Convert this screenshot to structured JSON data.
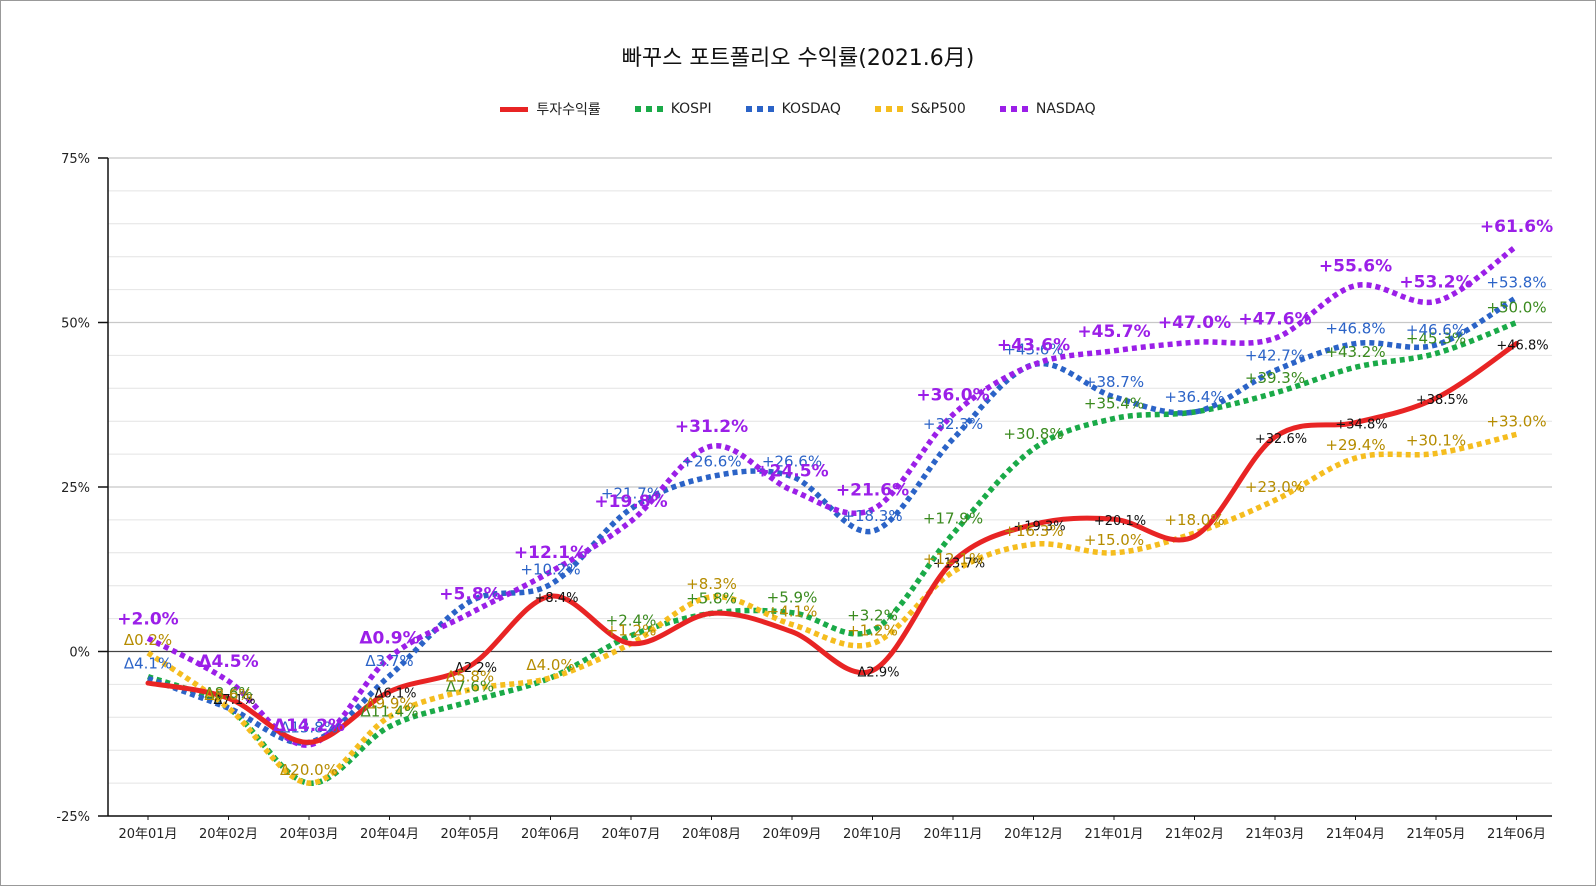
{
  "chart_data": {
    "type": "line",
    "title": "빠꾸스 포트폴리오 수익률(2021.6月)",
    "ylim": [
      -25,
      75
    ],
    "yticks": [
      "75%",
      "50%",
      "25%",
      "0%",
      "-25%"
    ],
    "ytick_values": [
      75,
      50,
      25,
      0,
      -25
    ],
    "grid": true,
    "legend_position": "top-center",
    "categories": [
      "20年01月",
      "20年02月",
      "20年03月",
      "20年04月",
      "20年05月",
      "20年06月",
      "20年07月",
      "20年08月",
      "20年09月",
      "20年10月",
      "20年11月",
      "20年12月",
      "21年01月",
      "21年02月",
      "21年03月",
      "21年04月",
      "21年05月",
      "21年06月"
    ],
    "series": [
      {
        "name": "투자수익률",
        "color": "#e82424",
        "style": "solid",
        "values": [
          -4.8,
          -7.1,
          -13.8,
          -6.1,
          -2.2,
          8.4,
          1.2,
          5.8,
          3.0,
          -2.9,
          13.7,
          19.3,
          20.1,
          17.5,
          32.6,
          34.8,
          38.5,
          46.8
        ],
        "labels": [
          "",
          "Δ7.1%",
          "",
          "Δ6.1%",
          "Δ2.2%",
          "+8.4%",
          "",
          "",
          "",
          "Δ2.9%",
          "+13.7%",
          "+19.3%",
          "+20.1%",
          "",
          "+32.6%",
          "+34.8%",
          "+38.5%",
          "+46.8%"
        ],
        "label_color": "#111111"
      },
      {
        "name": "KOSPI",
        "color": "#1aaa48",
        "style": "dotted",
        "values": [
          -3.8,
          -8.6,
          -20.0,
          -11.4,
          -7.6,
          -4.0,
          2.4,
          5.8,
          5.9,
          3.2,
          17.9,
          30.8,
          35.4,
          36.4,
          39.3,
          43.2,
          45.3,
          50.0
        ],
        "labels": [
          "",
          "Δ8.6%",
          "",
          "Δ11.4%",
          "Δ7.6%",
          "",
          "+2.4%",
          "+5.8%",
          "+5.9%",
          "+3.2%",
          "+17.9%",
          "+30.8%",
          "+35.4%",
          "",
          "+39.3%",
          "+43.2%",
          "+45.3%",
          "+50.0%"
        ],
        "label_color": "#3a8a1e"
      },
      {
        "name": "KOSDAQ",
        "color": "#2b63c7",
        "style": "dotted",
        "values": [
          -4.1,
          -8.6,
          -13.8,
          -3.7,
          7.6,
          10.2,
          21.7,
          26.6,
          26.6,
          18.3,
          32.3,
          43.6,
          38.7,
          36.4,
          42.7,
          46.8,
          46.6,
          53.8
        ],
        "labels": [
          "Δ4.1%",
          "",
          "Δ13.8%",
          "Δ3.7%",
          "",
          "+10.2%",
          "+21.7%",
          "+26.6%",
          "+26.6%",
          "+18.3%",
          "+32.3%",
          "+43.6%",
          "+38.7%",
          "+36.4%",
          "+42.7%",
          "+46.8%",
          "+46.6%",
          "+53.8%"
        ],
        "label_color": "#2b63c7"
      },
      {
        "name": "S&P500",
        "color": "#f5bd1f",
        "style": "dotted",
        "values": [
          -0.2,
          -8.6,
          -20.0,
          -9.9,
          -5.8,
          -4.0,
          1.2,
          8.3,
          4.1,
          1.2,
          12.1,
          16.3,
          15.0,
          18.0,
          23.0,
          29.4,
          30.1,
          33.0
        ],
        "labels": [
          "Δ0.2%",
          "Δ8.6%",
          "Δ20.0%",
          "Δ9.9%",
          "Δ5.8%",
          "Δ4.0%",
          "+1.2%",
          "+8.3%",
          "+4.1%",
          "+1.2%",
          "+12.1%",
          "+16.3%",
          "+15.0%",
          "+18.0%",
          "+23.0%",
          "+29.4%",
          "+30.1%",
          "+33.0%"
        ],
        "label_color": "#b58c00"
      },
      {
        "name": "NASDAQ",
        "color": "#9b1fe8",
        "style": "dotted",
        "values": [
          2.0,
          -4.5,
          -14.2,
          -0.9,
          5.8,
          12.1,
          19.8,
          31.2,
          24.5,
          21.6,
          36.0,
          43.6,
          45.7,
          47.0,
          47.6,
          55.6,
          53.2,
          61.6
        ],
        "labels": [
          "+2.0%",
          "Δ4.5%",
          "Δ14.2%",
          "Δ0.9%",
          "+5.8%",
          "+12.1%",
          "+19.8%",
          "+31.2%",
          "+24.5%",
          "+21.6%",
          "+36.0%",
          "+43.6%",
          "+45.7%",
          "+47.0%",
          "+47.6%",
          "+55.6%",
          "+53.2%",
          "+61.6%"
        ],
        "label_color": "#9b1fe8"
      }
    ]
  }
}
